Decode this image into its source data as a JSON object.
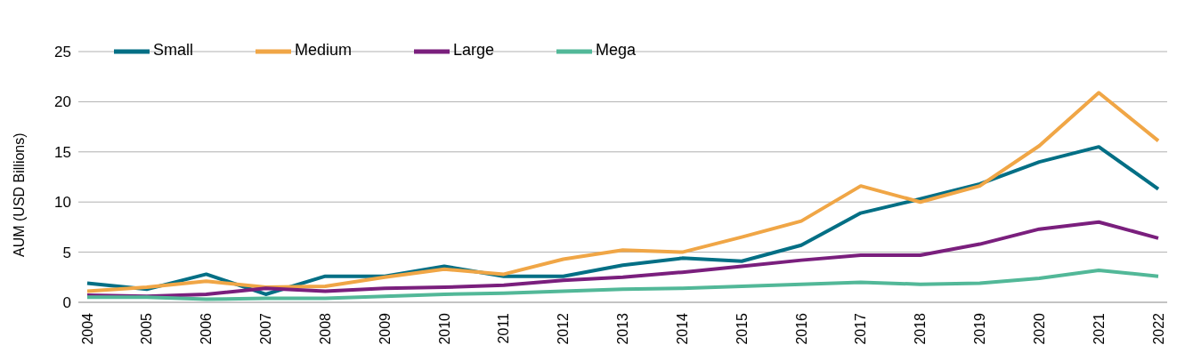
{
  "chart_data": {
    "type": "line",
    "ylabel": "AUM (USD Billions)",
    "categories": [
      "2004",
      "2005",
      "2006",
      "2007",
      "2008",
      "2009",
      "2010",
      "2011",
      "2012",
      "2013",
      "2014",
      "2015",
      "2016",
      "2017",
      "2018",
      "2019",
      "2020",
      "2021",
      "2022"
    ],
    "series": [
      {
        "name": "Small",
        "color": "#036f85",
        "values": [
          1.9,
          1.3,
          2.8,
          0.8,
          2.6,
          2.6,
          3.6,
          2.6,
          2.6,
          3.7,
          4.4,
          4.1,
          5.7,
          8.9,
          10.3,
          11.8,
          14.0,
          15.5,
          11.3
        ]
      },
      {
        "name": "Medium",
        "color": "#f0a646",
        "values": [
          1.1,
          1.5,
          2.1,
          1.5,
          1.6,
          2.5,
          3.3,
          2.8,
          4.3,
          5.2,
          5.0,
          6.5,
          8.1,
          11.6,
          10.0,
          11.6,
          15.6,
          20.9,
          16.1
        ]
      },
      {
        "name": "Large",
        "color": "#7a1f7d",
        "values": [
          0.7,
          0.6,
          0.8,
          1.4,
          1.1,
          1.4,
          1.5,
          1.7,
          2.2,
          2.5,
          3.0,
          3.6,
          4.2,
          4.7,
          4.7,
          5.8,
          7.3,
          8.0,
          6.4
        ]
      },
      {
        "name": "Mega",
        "color": "#52b898",
        "values": [
          0.5,
          0.5,
          0.3,
          0.4,
          0.4,
          0.6,
          0.8,
          0.9,
          1.1,
          1.3,
          1.4,
          1.6,
          1.8,
          2.0,
          1.8,
          1.9,
          2.4,
          3.2,
          2.6
        ]
      }
    ],
    "ylim": [
      0,
      25
    ],
    "yticks": [
      0,
      5,
      10,
      15,
      20,
      25
    ],
    "grid": "y",
    "legend": "top left",
    "marker": "none",
    "line_style": "solid"
  }
}
